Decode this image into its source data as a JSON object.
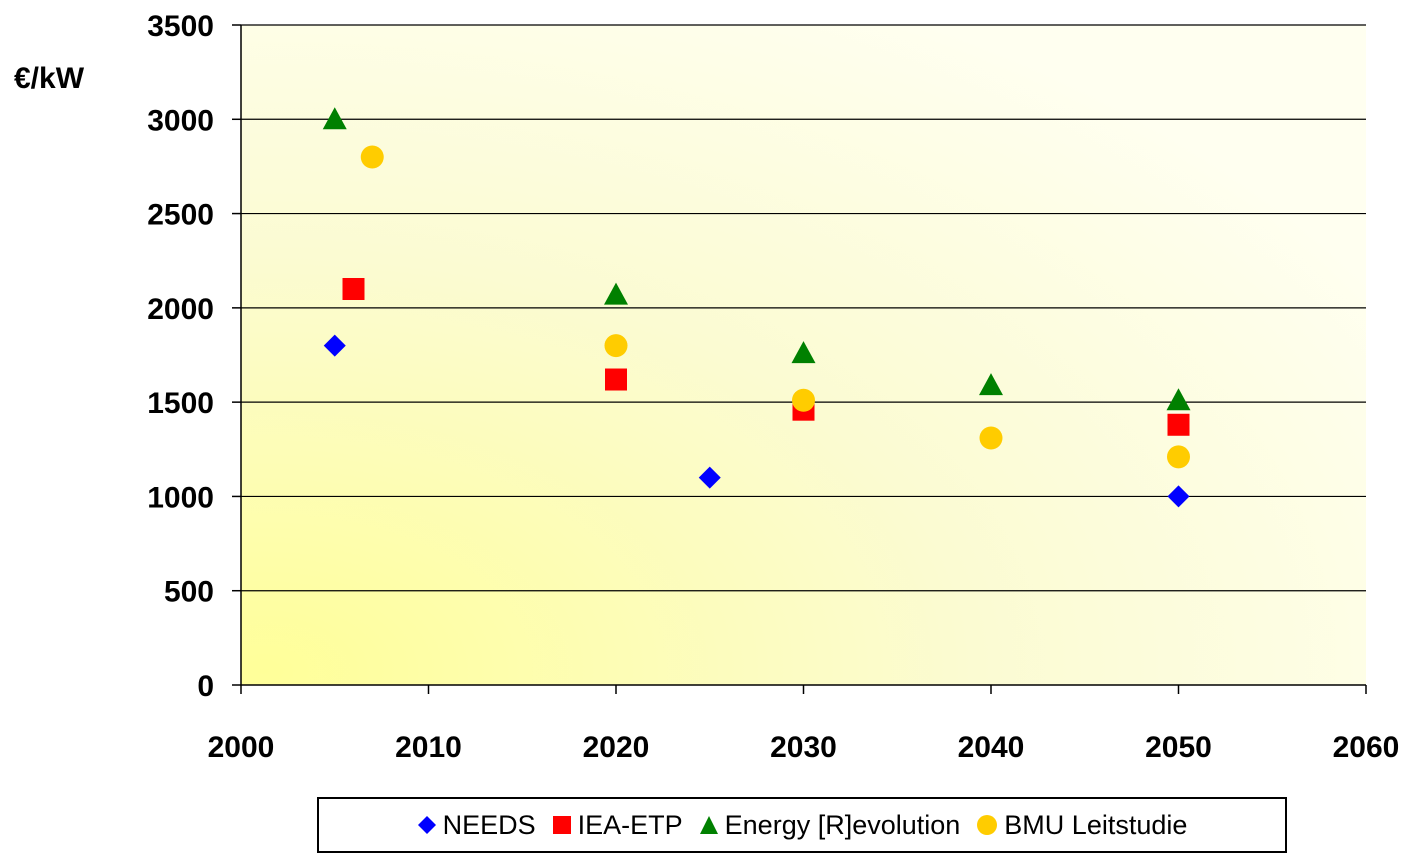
{
  "chart_data": {
    "type": "scatter",
    "unit_label": "€/kW",
    "xlim": [
      2000,
      2060
    ],
    "ylim": [
      0,
      3500
    ],
    "x_ticks": [
      "2000",
      "2010",
      "2020",
      "2030",
      "2040",
      "2050",
      "2060"
    ],
    "y_ticks": [
      "0",
      "500",
      "1000",
      "1500",
      "2000",
      "2500",
      "3000",
      "3500"
    ],
    "grid": "horizontal",
    "legend_position": "bottom",
    "series": [
      {
        "name": "NEEDS",
        "marker": "diamond",
        "color": "#0000ff",
        "points": [
          {
            "x": 2005,
            "y": 1800
          },
          {
            "x": 2025,
            "y": 1100
          },
          {
            "x": 2050,
            "y": 1000
          }
        ]
      },
      {
        "name": "IEA-ETP",
        "marker": "square",
        "color": "#ff0000",
        "points": [
          {
            "x": 2006,
            "y": 2100
          },
          {
            "x": 2020,
            "y": 1620
          },
          {
            "x": 2030,
            "y": 1460
          },
          {
            "x": 2050,
            "y": 1380
          }
        ]
      },
      {
        "name": "Energy [R]evolution",
        "marker": "triangle",
        "color": "#008000",
        "points": [
          {
            "x": 2005,
            "y": 3000
          },
          {
            "x": 2020,
            "y": 2070
          },
          {
            "x": 2030,
            "y": 1760
          },
          {
            "x": 2040,
            "y": 1590
          },
          {
            "x": 2050,
            "y": 1510
          }
        ]
      },
      {
        "name": "BMU Leitstudie",
        "marker": "circle",
        "color": "#ffcc00",
        "points": [
          {
            "x": 2007,
            "y": 2800
          },
          {
            "x": 2020,
            "y": 1800
          },
          {
            "x": 2030,
            "y": 1510
          },
          {
            "x": 2040,
            "y": 1310
          },
          {
            "x": 2050,
            "y": 1210
          }
        ]
      }
    ]
  }
}
